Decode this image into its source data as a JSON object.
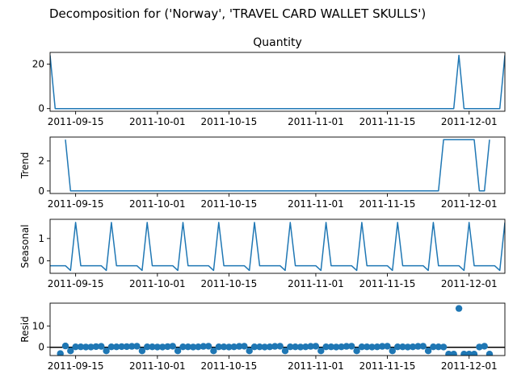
{
  "suptitle": "Decomposition for ('Norway', 'TRAVEL CARD WALLET SKULLS')",
  "x_ticks": [
    "2011-09-15",
    "2011-10-01",
    "2011-10-15",
    "2011-11-01",
    "2011-11-15",
    "2011-12-01"
  ],
  "colors": {
    "series": "#1f77b4",
    "axis": "#000000",
    "background": "#ffffff"
  },
  "chart_data": [
    {
      "type": "line",
      "title": "Quantity",
      "ylabel": "",
      "x_range": [
        "2011-09-10",
        "2011-12-08"
      ],
      "ylim": [
        -1.2,
        25.3
      ],
      "yticks": [
        0,
        20
      ],
      "points": [
        [
          "2011-09-10",
          24
        ],
        [
          "2011-09-11",
          0
        ],
        [
          "2011-11-28",
          0
        ],
        [
          "2011-11-29",
          24
        ],
        [
          "2011-11-30",
          0
        ],
        [
          "2011-12-07",
          0
        ],
        [
          "2011-12-08",
          24
        ]
      ]
    },
    {
      "type": "line",
      "title": "",
      "ylabel": "Trend",
      "x_range": [
        "2011-09-10",
        "2011-12-08"
      ],
      "ylim": [
        -0.17,
        3.6
      ],
      "yticks": [
        0,
        2
      ],
      "points": [
        [
          "2011-09-13",
          3.43
        ],
        [
          "2011-09-14",
          0
        ],
        [
          "2011-11-25",
          0
        ],
        [
          "2011-11-26",
          3.43
        ],
        [
          "2011-12-02",
          3.43
        ],
        [
          "2011-12-03",
          0
        ],
        [
          "2011-12-04",
          0
        ],
        [
          "2011-12-05",
          3.43
        ]
      ]
    },
    {
      "type": "line",
      "title": "",
      "ylabel": "Seasonal",
      "x_range": [
        "2011-09-10",
        "2011-12-08"
      ],
      "ylim": [
        -0.56,
        1.86
      ],
      "yticks": [
        0,
        1
      ],
      "weekly_pattern": [
        -0.22,
        -0.22,
        -0.22,
        -0.22,
        -0.22,
        -0.43,
        -0.43
      ],
      "weekly_peak": 1.72,
      "first_peak": "2011-09-15"
    },
    {
      "type": "scatter",
      "title": "",
      "ylabel": "Resid",
      "x_range": [
        "2011-09-10",
        "2011-12-08"
      ],
      "ylim": [
        -3.9,
        20.7
      ],
      "yticks": [
        0,
        10
      ],
      "baseline": 0,
      "points": [
        [
          "2011-09-12",
          -3.0
        ],
        [
          "2011-09-13",
          0.6
        ],
        [
          "2011-09-14",
          -1.7
        ],
        [
          "2011-09-15",
          0.2
        ],
        [
          "2011-09-16",
          0.2
        ],
        [
          "2011-09-17",
          0.1
        ],
        [
          "2011-09-18",
          0.1
        ],
        [
          "2011-09-19",
          0.3
        ],
        [
          "2011-09-20",
          0.4
        ],
        [
          "2011-09-21",
          -1.7
        ],
        [
          "2011-09-22",
          0.2
        ],
        [
          "2011-09-23",
          0.2
        ],
        [
          "2011-09-24",
          0.3
        ],
        [
          "2011-09-25",
          0.3
        ],
        [
          "2011-09-26",
          0.4
        ],
        [
          "2011-09-27",
          0.5
        ],
        [
          "2011-09-28",
          -1.7
        ],
        [
          "2011-09-29",
          0.2
        ],
        [
          "2011-09-30",
          0.2
        ],
        [
          "2011-10-01",
          0.1
        ],
        [
          "2011-10-02",
          0.1
        ],
        [
          "2011-10-03",
          0.3
        ],
        [
          "2011-10-04",
          0.5
        ],
        [
          "2011-10-05",
          -1.7
        ],
        [
          "2011-10-06",
          0.2
        ],
        [
          "2011-10-07",
          0.2
        ],
        [
          "2011-10-08",
          0.1
        ],
        [
          "2011-10-09",
          0.2
        ],
        [
          "2011-10-10",
          0.4
        ],
        [
          "2011-10-11",
          0.5
        ],
        [
          "2011-10-12",
          -1.7
        ],
        [
          "2011-10-13",
          0.2
        ],
        [
          "2011-10-14",
          0.2
        ],
        [
          "2011-10-15",
          0.1
        ],
        [
          "2011-10-16",
          0.2
        ],
        [
          "2011-10-17",
          0.4
        ],
        [
          "2011-10-18",
          0.5
        ],
        [
          "2011-10-19",
          -1.7
        ],
        [
          "2011-10-20",
          0.2
        ],
        [
          "2011-10-21",
          0.2
        ],
        [
          "2011-10-22",
          0.1
        ],
        [
          "2011-10-23",
          0.2
        ],
        [
          "2011-10-24",
          0.4
        ],
        [
          "2011-10-25",
          0.5
        ],
        [
          "2011-10-26",
          -1.7
        ],
        [
          "2011-10-27",
          0.2
        ],
        [
          "2011-10-28",
          0.2
        ],
        [
          "2011-10-29",
          0.1
        ],
        [
          "2011-10-30",
          0.2
        ],
        [
          "2011-10-31",
          0.4
        ],
        [
          "2011-11-01",
          0.5
        ],
        [
          "2011-11-02",
          -1.7
        ],
        [
          "2011-11-03",
          0.2
        ],
        [
          "2011-11-04",
          0.2
        ],
        [
          "2011-11-05",
          0.1
        ],
        [
          "2011-11-06",
          0.2
        ],
        [
          "2011-11-07",
          0.4
        ],
        [
          "2011-11-08",
          0.5
        ],
        [
          "2011-11-09",
          -1.7
        ],
        [
          "2011-11-10",
          0.2
        ],
        [
          "2011-11-11",
          0.2
        ],
        [
          "2011-11-12",
          0.1
        ],
        [
          "2011-11-13",
          0.2
        ],
        [
          "2011-11-14",
          0.4
        ],
        [
          "2011-11-15",
          0.5
        ],
        [
          "2011-11-16",
          -1.7
        ],
        [
          "2011-11-17",
          0.2
        ],
        [
          "2011-11-18",
          0.2
        ],
        [
          "2011-11-19",
          0.1
        ],
        [
          "2011-11-20",
          0.2
        ],
        [
          "2011-11-21",
          0.4
        ],
        [
          "2011-11-22",
          0.5
        ],
        [
          "2011-11-23",
          -1.7
        ],
        [
          "2011-11-24",
          0.2
        ],
        [
          "2011-11-25",
          0.2
        ],
        [
          "2011-11-26",
          0.1
        ],
        [
          "2011-11-27",
          -3.2
        ],
        [
          "2011-11-28",
          -3.2
        ],
        [
          "2011-11-29",
          18.2
        ],
        [
          "2011-11-30",
          -3.2
        ],
        [
          "2011-12-01",
          -3.2
        ],
        [
          "2011-12-02",
          -3.2
        ],
        [
          "2011-12-03",
          0.1
        ],
        [
          "2011-12-04",
          0.5
        ],
        [
          "2011-12-05",
          -3.2
        ]
      ]
    }
  ]
}
